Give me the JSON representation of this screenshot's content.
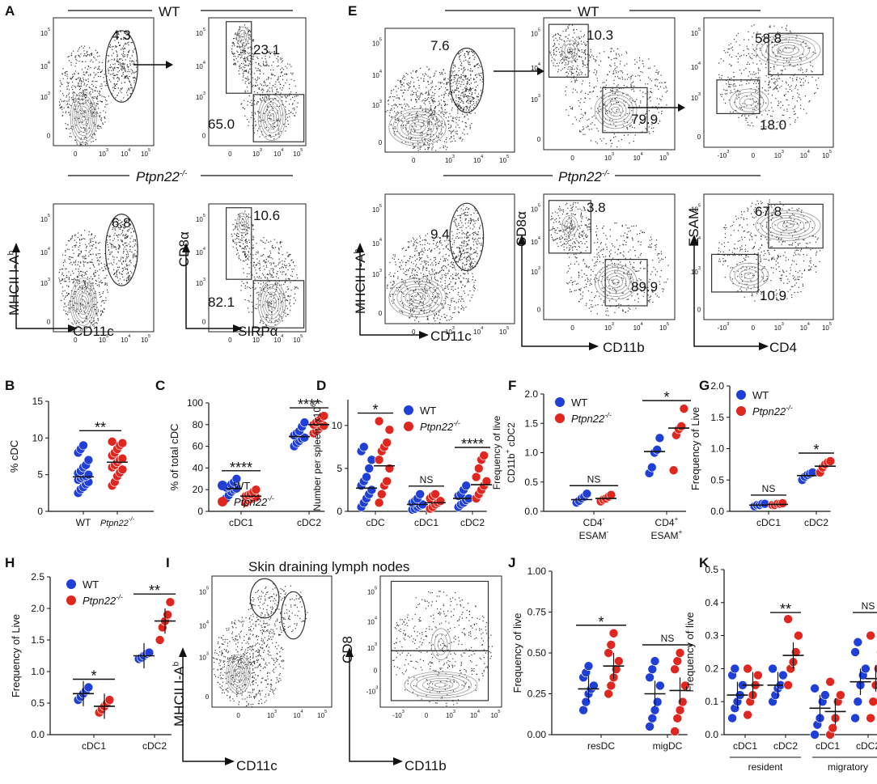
{
  "panels": {
    "A": "A",
    "B": "B",
    "C": "C",
    "D": "D",
    "E": "E",
    "F": "F",
    "G": "G",
    "H": "H",
    "I": "I",
    "J": "J",
    "K": "K"
  },
  "groups": {
    "wt": "WT",
    "ko": "Ptpn22",
    "ko_sup": "-/-"
  },
  "flow": {
    "A": {
      "wt": {
        "gate1": "4.3",
        "gate2": "23.1",
        "gate3": "65.0"
      },
      "ko": {
        "gate1": "6.8",
        "gate2": "10.6",
        "gate3": "82.1"
      },
      "ylabel1": "MHCII I-A",
      "ylabel1_sup": "b",
      "xlabel1": "CD11c",
      "ylabel2": "CD8α",
      "xlabel2": "SIRPα"
    },
    "E": {
      "wt": {
        "gate1": "7.6",
        "gate2": "10.3",
        "gate3": "79.9",
        "gate4": "58.8",
        "gate5": "18.0"
      },
      "ko": {
        "gate1": "9.4",
        "gate2": "3.8",
        "gate3": "89.9",
        "gate4": "67.8",
        "gate5": "10.9"
      },
      "ylabel1": "MHCII I-A",
      "ylabel1_sup": "b",
      "xlabel1": "CD11c",
      "ylabel2": "CD8α",
      "xlabel2": "CD11b",
      "ylabel3": "ESAM",
      "xlabel3": "CD4"
    },
    "I": {
      "title": "Skin draining lymph nodes",
      "ylabel1": "MHCII I-A",
      "ylabel1_sup": "b",
      "xlabel1": "CD11c",
      "ylabel2": "CD8",
      "xlabel2": "CD11b"
    }
  },
  "ticks": {
    "t0": "0",
    "t3": "10",
    "t3s": "3",
    "t4": "10",
    "t4s": "4",
    "t5": "10",
    "t5s": "5",
    "tn3": "-10",
    "tn3s": "3"
  },
  "chart_data": [
    {
      "panel": "B",
      "type": "scatter",
      "ylabel": "% cDC",
      "categories": [
        "WT",
        "Ptpn22-/-"
      ],
      "ylim": [
        0,
        15
      ],
      "yticks": [
        "0",
        "5",
        "10",
        "15"
      ],
      "series": [
        {
          "name": "WT",
          "values": [
            2.5,
            3,
            3.3,
            3.7,
            4,
            4.3,
            4.5,
            4.7,
            4.8,
            5,
            5.2,
            5.5,
            6,
            6.3,
            7,
            8,
            8.5,
            9
          ]
        },
        {
          "name": "Ptpn22-/-",
          "values": [
            3.5,
            4,
            4.8,
            5.3,
            5.7,
            6,
            6.3,
            6.7,
            7,
            7.2,
            7.6,
            8,
            8.5,
            9,
            9.3,
            9.5
          ]
        }
      ],
      "means": [
        4.7,
        6.7
      ],
      "significance": [
        "**"
      ]
    },
    {
      "panel": "C",
      "type": "scatter",
      "ylabel": "% of total cDC",
      "categories": [
        "cDC1",
        "cDC2"
      ],
      "ylim": [
        0,
        100
      ],
      "yticks": [
        "0",
        "20",
        "40",
        "60",
        "80",
        "100"
      ],
      "series": [
        {
          "name": "WT",
          "values": [
            [
              12,
              15,
              18,
              20,
              21,
              22,
              23,
              25,
              27,
              30
            ],
            [
              60,
              63,
              65,
              67,
              68,
              70,
              72,
              74,
              78,
              82
            ]
          ]
        },
        {
          "name": "Ptpn22-/-",
          "values": [
            [
              8,
              10,
              11,
              12,
              13,
              14,
              15,
              16,
              18,
              20
            ],
            [
              72,
              74,
              76,
              78,
              79,
              80,
              82,
              84,
              86,
              88
            ]
          ]
        }
      ],
      "means": [
        [
          21,
          14
        ],
        [
          69,
          80
        ]
      ],
      "significance": [
        "****",
        "****"
      ],
      "legend": [
        "WT",
        "Ptpn22-/-"
      ]
    },
    {
      "panel": "D",
      "type": "scatter",
      "ylabel": "Number per spleen (x10",
      "ylabel_sup": "6",
      "ylabel_end": ")",
      "categories": [
        "cDC",
        "cDC1",
        "cDC2"
      ],
      "ylim": [
        0,
        13
      ],
      "yticks": [
        "0",
        "5",
        "10"
      ],
      "series": [
        {
          "name": "WT",
          "values": [
            [
              0.5,
              1,
              1.5,
              2,
              2.5,
              3,
              3.5,
              4,
              5,
              6,
              7,
              7.5
            ],
            [
              0.2,
              0.3,
              0.5,
              0.7,
              0.8,
              1,
              1.2,
              1.5,
              2
            ],
            [
              0.5,
              0.8,
              1,
              1.3,
              1.5,
              1.8,
              2,
              2.5,
              3
            ]
          ]
        },
        {
          "name": "Ptpn22-/-",
          "values": [
            [
              1,
              2,
              3,
              3.5,
              5,
              6,
              7,
              7.5,
              8,
              9.5,
              10.5
            ],
            [
              0.3,
              0.5,
              0.8,
              1,
              1.2,
              1.5,
              1.8,
              2
            ],
            [
              1.5,
              2,
              2.5,
              3,
              3.5,
              4,
              5,
              6,
              6.5
            ]
          ]
        }
      ],
      "means": [
        [
          2.7,
          5.3
        ],
        [
          0.8,
          1
        ],
        [
          1.5,
          3.1
        ]
      ],
      "significance": [
        "*",
        "NS",
        "****"
      ],
      "legend": [
        "WT",
        "Ptpn22-/-"
      ]
    },
    {
      "panel": "F",
      "type": "scatter",
      "ylabel": "Frequency of live",
      "ylabel2": "CD11b",
      "ylabel2_sup": "+",
      "ylabel2_end": " cDC2",
      "categories": [
        "CD4- ESAM-",
        "CD4+ ESAM+"
      ],
      "category_lines": [
        [
          "CD4",
          "-"
        ],
        [
          "ESAM",
          "-"
        ],
        [
          "CD4",
          "+"
        ],
        [
          "ESAM",
          "+"
        ]
      ],
      "ylim": [
        0,
        2
      ],
      "yticks": [
        "0.0",
        "0.5",
        "1.0",
        "1.5",
        "2.0"
      ],
      "series": [
        {
          "name": "WT",
          "values": [
            [
              0.15,
              0.18,
              0.22,
              0.25,
              0.3
            ],
            [
              0.65,
              0.75,
              1.0,
              1.05,
              1.25
            ]
          ]
        },
        {
          "name": "Ptpn22-/-",
          "values": [
            [
              0.17,
              0.2,
              0.22,
              0.25,
              0.28
            ],
            [
              0.7,
              1.3,
              1.4,
              1.45,
              1.75
            ]
          ]
        }
      ],
      "means": [
        [
          0.2,
          0.22
        ],
        [
          1.02,
          1.42
        ]
      ],
      "significance": [
        "NS",
        "*"
      ],
      "legend": [
        "WT",
        "Ptpn22-/-"
      ]
    },
    {
      "panel": "G",
      "type": "scatter",
      "ylabel": "Frequency of Live",
      "categories": [
        "cDC1",
        "cDC2"
      ],
      "ylim": [
        0,
        2
      ],
      "yticks": [
        "0.0",
        "0.5",
        "1.0",
        "1.5",
        "2.0"
      ],
      "series": [
        {
          "name": "WT",
          "values": [
            [
              0.08,
              0.1,
              0.1,
              0.12,
              0.12
            ],
            [
              0.5,
              0.55,
              0.58,
              0.6,
              0.62
            ]
          ]
        },
        {
          "name": "Ptpn22-/-",
          "values": [
            [
              0.1,
              0.1,
              0.12,
              0.12,
              0.13
            ],
            [
              0.62,
              0.7,
              0.75,
              0.78,
              0.8
            ]
          ]
        }
      ],
      "means": [
        [
          0.1,
          0.11
        ],
        [
          0.57,
          0.72
        ]
      ],
      "significance": [
        "NS",
        "*"
      ],
      "legend": [
        "WT",
        "Ptpn22-/-"
      ]
    },
    {
      "panel": "H",
      "type": "scatter",
      "ylabel": "Frequency of Live",
      "categories": [
        "cDC1",
        "cDC2"
      ],
      "ylim": [
        0,
        2.5
      ],
      "yticks": [
        "0.0",
        "0.5",
        "1.0",
        "1.5",
        "2.0",
        "2.5"
      ],
      "series": [
        {
          "name": "WT",
          "values": [
            [
              0.55,
              0.6,
              0.65,
              0.7,
              0.75
            ],
            [
              1.2,
              1.22,
              1.25,
              1.28,
              1.3
            ]
          ]
        },
        {
          "name": "Ptpn22-/-",
          "values": [
            [
              0.35,
              0.4,
              0.45,
              0.5,
              0.55
            ],
            [
              1.5,
              1.7,
              1.8,
              1.9,
              2.1
            ]
          ]
        }
      ],
      "means": [
        [
          0.65,
          0.45
        ],
        [
          1.25,
          1.8
        ]
      ],
      "significance": [
        "*",
        "**"
      ],
      "legend": [
        "WT",
        "Ptpn22-/-"
      ]
    },
    {
      "panel": "J",
      "type": "scatter",
      "ylabel": "Frequency of live",
      "categories": [
        "resDC",
        "migDC"
      ],
      "ylim": [
        0,
        1
      ],
      "yticks": [
        "0.00",
        "0.25",
        "0.50",
        "0.75",
        "1.00"
      ],
      "series": [
        {
          "name": "WT",
          "values": [
            [
              0.15,
              0.2,
              0.25,
              0.28,
              0.3,
              0.35,
              0.38,
              0.42
            ],
            [
              0.05,
              0.1,
              0.15,
              0.2,
              0.3,
              0.35,
              0.4,
              0.45
            ]
          ]
        },
        {
          "name": "Ptpn22-/-",
          "values": [
            [
              0.25,
              0.3,
              0.35,
              0.4,
              0.45,
              0.5,
              0.55,
              0.62
            ],
            [
              0.02,
              0.1,
              0.15,
              0.2,
              0.3,
              0.4,
              0.45,
              0.5
            ]
          ]
        }
      ],
      "means": [
        [
          0.28,
          0.42
        ],
        [
          0.25,
          0.27
        ]
      ],
      "significance": [
        "*",
        "NS"
      ]
    },
    {
      "panel": "K",
      "type": "scatter",
      "ylabel": "Frequency of live",
      "categories": [
        "cDC1",
        "cDC2",
        "cDC1",
        "cDC2"
      ],
      "category_groups": [
        "resident",
        "migratory"
      ],
      "ylim": [
        0,
        0.5
      ],
      "yticks": [
        "0.0",
        "0.1",
        "0.2",
        "0.3",
        "0.4",
        "0.5"
      ],
      "series": [
        {
          "name": "WT",
          "values": [
            [
              0.05,
              0.08,
              0.1,
              0.12,
              0.15,
              0.18,
              0.2
            ],
            [
              0.1,
              0.12,
              0.14,
              0.15,
              0.18,
              0.2
            ],
            [
              0.0,
              0.03,
              0.05,
              0.1,
              0.12,
              0.14
            ],
            [
              0.05,
              0.1,
              0.15,
              0.18,
              0.2,
              0.25,
              0.28
            ]
          ]
        },
        {
          "name": "Ptpn22-/-",
          "values": [
            [
              0.06,
              0.1,
              0.12,
              0.15,
              0.18,
              0.2
            ],
            [
              0.15,
              0.2,
              0.22,
              0.25,
              0.3,
              0.35
            ],
            [
              0.0,
              0.02,
              0.05,
              0.1,
              0.12,
              0.16
            ],
            [
              0.05,
              0.1,
              0.15,
              0.2,
              0.25,
              0.3
            ]
          ]
        }
      ],
      "means": [
        [
          0.12,
          0.15
        ],
        [
          0.15,
          0.24
        ],
        [
          0.08,
          0.07
        ],
        [
          0.16,
          0.17
        ]
      ],
      "significance": [
        "**",
        "NS"
      ]
    }
  ],
  "colors": {
    "wt": "#1f3fd6",
    "ko": "#e0271f"
  }
}
